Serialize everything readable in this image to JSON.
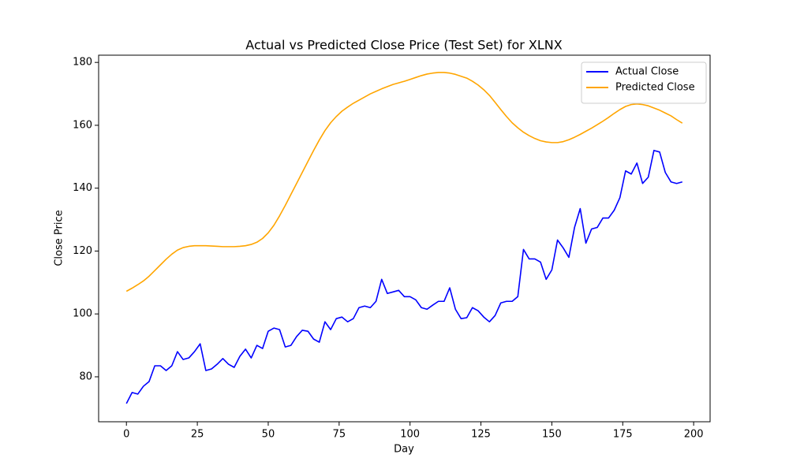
{
  "chart_data": {
    "type": "line",
    "title": "Actual vs Predicted Close Price (Test Set) for XLNX",
    "x_label": "Day",
    "y_label": "Close Price",
    "x": [
      0,
      2,
      4,
      6,
      8,
      10,
      12,
      14,
      16,
      18,
      20,
      22,
      24,
      26,
      28,
      30,
      32,
      34,
      36,
      38,
      40,
      42,
      44,
      46,
      48,
      50,
      52,
      54,
      56,
      58,
      60,
      62,
      64,
      66,
      68,
      70,
      72,
      74,
      76,
      78,
      80,
      82,
      84,
      86,
      88,
      90,
      92,
      94,
      96,
      98,
      100,
      102,
      104,
      106,
      108,
      110,
      112,
      114,
      116,
      118,
      120,
      122,
      124,
      126,
      128,
      130,
      132,
      134,
      136,
      138,
      140,
      142,
      144,
      146,
      148,
      150,
      152,
      154,
      156,
      158,
      160,
      162,
      164,
      166,
      168,
      170,
      172,
      174,
      176,
      178,
      180,
      182,
      184,
      186,
      188,
      190,
      192,
      194,
      196
    ],
    "series": [
      {
        "name": "Actual Close",
        "color": "#0000ff",
        "values": [
          71.5,
          75,
          74.5,
          77,
          78.5,
          83.5,
          83.5,
          82,
          83.5,
          88,
          85.5,
          86,
          88,
          90.5,
          82,
          82.5,
          84,
          85.8,
          84,
          83,
          86.5,
          88.8,
          86,
          90,
          89,
          94.5,
          95.5,
          95,
          89.5,
          90,
          92.8,
          94.8,
          94.5,
          92,
          91,
          97.5,
          95,
          98.5,
          99,
          97.5,
          98.5,
          102,
          102.5,
          102,
          104,
          111,
          106.5,
          107,
          107.5,
          105.5,
          105.5,
          104.5,
          102,
          101.5,
          102.8,
          104,
          104,
          108.3,
          101.5,
          98.5,
          98.8,
          102,
          101,
          99,
          97.5,
          99.5,
          103.5,
          104,
          104,
          105.5,
          120.5,
          117.5,
          117.5,
          116.5,
          111,
          114,
          123.5,
          121,
          118,
          127.5,
          133.5,
          122.5,
          127,
          127.5,
          130.5,
          130.5,
          133,
          137,
          145.5,
          144.5,
          148,
          141.5,
          143.5,
          152,
          151.5,
          145,
          142,
          141.5,
          142
        ]
      },
      {
        "name": "Predicted Close",
        "color": "#ffa500",
        "values": [
          107.2,
          108.2,
          109.3,
          110.5,
          112,
          113.8,
          115.6,
          117.4,
          119,
          120.3,
          121.1,
          121.5,
          121.7,
          121.7,
          121.7,
          121.6,
          121.5,
          121.4,
          121.4,
          121.4,
          121.5,
          121.7,
          122.1,
          122.8,
          124,
          125.8,
          128.2,
          131.2,
          134.5,
          138,
          141.5,
          145,
          148.5,
          152,
          155.3,
          158.3,
          160.8,
          162.8,
          164.5,
          165.8,
          167,
          168,
          169,
          170,
          170.8,
          171.6,
          172.3,
          173,
          173.5,
          174,
          174.6,
          175.2,
          175.8,
          176.3,
          176.6,
          176.8,
          176.8,
          176.6,
          176.2,
          175.6,
          175,
          174,
          172.8,
          171.3,
          169.5,
          167.3,
          165,
          162.8,
          160.8,
          159.2,
          157.8,
          156.7,
          155.8,
          155.1,
          154.7,
          154.5,
          154.5,
          154.8,
          155.4,
          156.2,
          157.1,
          158.1,
          159.1,
          160.2,
          161.3,
          162.5,
          163.8,
          165,
          166,
          166.6,
          166.8,
          166.6,
          166.2,
          165.5,
          164.8,
          163.9,
          163,
          161.8,
          160.7
        ]
      }
    ],
    "xlim": [
      -9.8,
      205.8
    ],
    "ylim": [
      65.7,
      182.3
    ],
    "xticks": [
      0,
      25,
      50,
      75,
      100,
      125,
      150,
      175,
      200
    ],
    "yticks": [
      80,
      100,
      120,
      140,
      160,
      180
    ],
    "grid": false,
    "legend": "upper right"
  }
}
